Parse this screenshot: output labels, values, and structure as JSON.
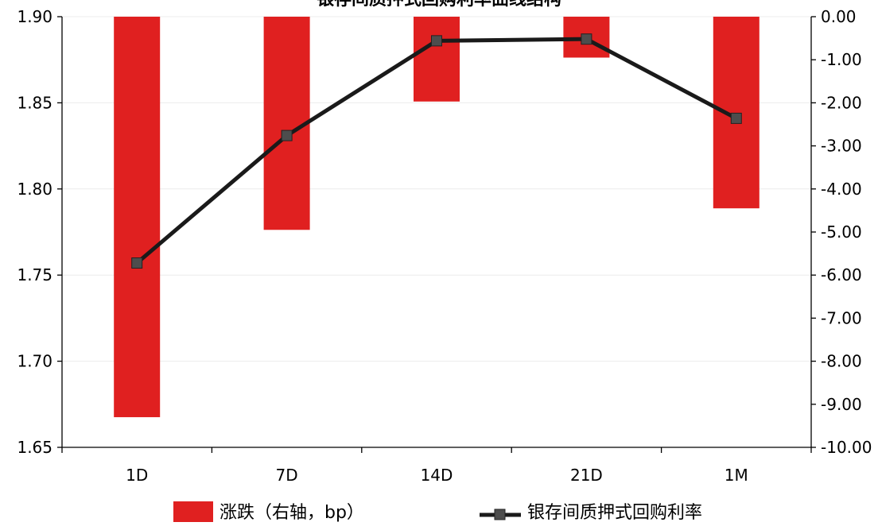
{
  "chart_data": {
    "type": "bar",
    "title": "银存间质押式回购利率曲线结构",
    "categories": [
      "1D",
      "7D",
      "14D",
      "21D",
      "1M"
    ],
    "series": [
      {
        "name": "涨跌（右轴，bp）",
        "type": "bar",
        "axis": "right",
        "color": "#E02020",
        "values": [
          -9.3,
          -4.95,
          -1.97,
          -0.95,
          -4.45
        ]
      },
      {
        "name": "银存间质押式回购利率",
        "type": "line",
        "axis": "left",
        "color": "#1a1a1a",
        "marker_color": "#4d4d4d",
        "values": [
          1.757,
          1.831,
          1.886,
          1.887,
          1.841
        ]
      }
    ],
    "y_left": {
      "lim": [
        1.65,
        1.9
      ],
      "ticks": [
        "1.65",
        "1.70",
        "1.75",
        "1.80",
        "1.85",
        "1.90"
      ]
    },
    "y_right": {
      "lim": [
        -10,
        0
      ],
      "ticks": [
        "0.00",
        "-1.00",
        "-2.00",
        "-3.00",
        "-4.00",
        "-5.00",
        "-6.00",
        "-7.00",
        "-8.00",
        "-9.00",
        "-10.00"
      ]
    },
    "grid": true,
    "legend": "bottom"
  }
}
